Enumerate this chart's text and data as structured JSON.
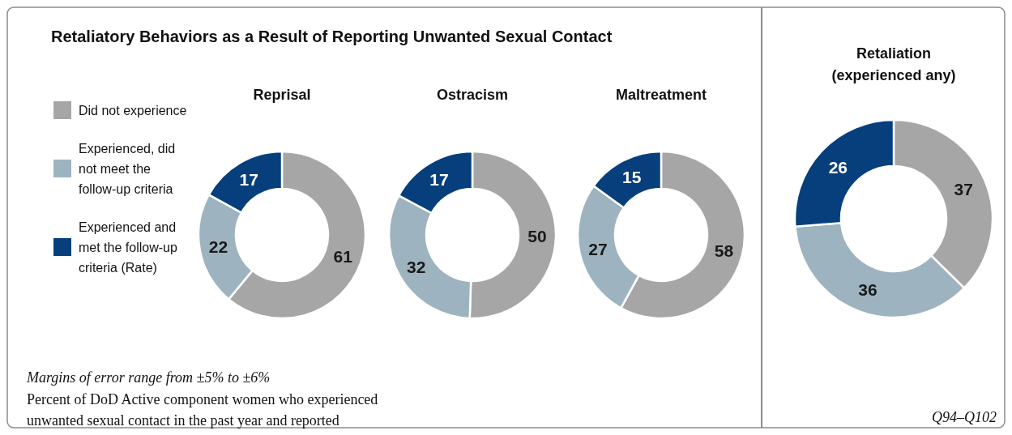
{
  "chart_data": [
    {
      "type": "donut",
      "title": "Retaliatory Behaviors as a Result of Reporting Unwanted Sexual Contact",
      "subtitle": "Reprisal",
      "categories": [
        "Did not experience",
        "Experienced, did not meet the follow-up criteria",
        "Experienced and met the follow-up criteria (Rate)"
      ],
      "values": [
        61,
        22,
        17
      ],
      "colors": [
        "#a6a6a6",
        "#9db4c0",
        "#063f7c"
      ],
      "data_labels": true,
      "legend": "left",
      "annotations": [
        "Margins of error range from ±5% to ±6%",
        "Percent of DoD Active component women who experienced unwanted sexual contact in the past year and reported"
      ]
    },
    {
      "type": "donut",
      "title": "Ostracism",
      "categories": [
        null,
        null,
        null
      ],
      "values": [
        50,
        32,
        17
      ],
      "colors": [
        "#a6a6a6",
        "#9db4c0",
        "#063f7c"
      ],
      "data_labels": true
    },
    {
      "type": "donut",
      "title": "Maltreatment",
      "categories": [
        null,
        null,
        null
      ],
      "values": [
        58,
        27,
        15
      ],
      "colors": [
        "#a6a6a6",
        "#9db4c0",
        "#063f7c"
      ],
      "data_labels": true
    },
    {
      "type": "donut",
      "title": "Retaliation (experienced any)",
      "categories": [
        null,
        null,
        null
      ],
      "values": [
        37,
        36,
        26
      ],
      "colors": [
        "#a6a6a6",
        "#9db4c0",
        "#063f7c"
      ],
      "data_labels": true,
      "annotations": [
        "Q94–Q102"
      ]
    }
  ]
}
